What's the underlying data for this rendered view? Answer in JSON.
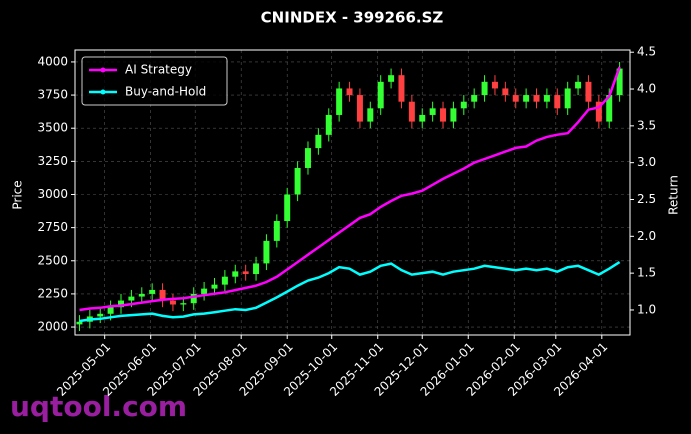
{
  "chart_data": {
    "type": "candlestick",
    "title": "CNINDEX - 399266.SZ",
    "ylabel": "Price",
    "y2label": "Return",
    "watermark": "uqtool.com",
    "x": [
      "2025-04-14",
      "2025-04-21",
      "2025-04-28",
      "2025-05-05",
      "2025-05-12",
      "2025-05-19",
      "2025-05-26",
      "2025-06-02",
      "2025-06-09",
      "2025-06-16",
      "2025-06-23",
      "2025-06-30",
      "2025-07-07",
      "2025-07-14",
      "2025-07-21",
      "2025-07-28",
      "2025-08-04",
      "2025-08-11",
      "2025-08-18",
      "2025-08-25",
      "2025-09-01",
      "2025-09-08",
      "2025-09-15",
      "2025-09-22",
      "2025-09-29",
      "2025-10-06",
      "2025-10-13",
      "2025-10-20",
      "2025-10-27",
      "2025-11-03",
      "2025-11-10",
      "2025-11-17",
      "2025-11-24",
      "2025-12-01",
      "2025-12-08",
      "2025-12-15",
      "2025-12-22",
      "2025-12-29",
      "2026-01-05",
      "2026-01-12",
      "2026-01-19",
      "2026-01-26",
      "2026-02-02",
      "2026-02-09",
      "2026-02-16",
      "2026-02-23",
      "2026-03-02",
      "2026-03-09",
      "2026-03-16",
      "2026-03-23",
      "2026-03-30",
      "2026-04-06",
      "2026-04-13"
    ],
    "open": [
      2020,
      2040,
      2080,
      2100,
      2150,
      2200,
      2230,
      2250,
      2280,
      2200,
      2170,
      2180,
      2250,
      2290,
      2320,
      2380,
      2420,
      2400,
      2480,
      2650,
      2800,
      3000,
      3200,
      3350,
      3450,
      3600,
      3800,
      3750,
      3550,
      3650,
      3850,
      3900,
      3700,
      3550,
      3600,
      3650,
      3550,
      3650,
      3700,
      3750,
      3850,
      3800,
      3750,
      3700,
      3750,
      3700,
      3750,
      3650,
      3800,
      3850,
      3700,
      3550,
      3750
    ],
    "high": [
      2090,
      2130,
      2150,
      2200,
      2250,
      2280,
      2300,
      2330,
      2330,
      2250,
      2230,
      2300,
      2340,
      2370,
      2430,
      2470,
      2470,
      2530,
      2700,
      2850,
      3050,
      3250,
      3400,
      3500,
      3650,
      3850,
      3850,
      3800,
      3700,
      3900,
      3950,
      3950,
      3750,
      3650,
      3700,
      3700,
      3700,
      3750,
      3800,
      3900,
      3900,
      3850,
      3800,
      3800,
      3800,
      3800,
      3800,
      3850,
      3900,
      3900,
      3750,
      3800,
      4000
    ],
    "low": [
      1970,
      1990,
      2030,
      2050,
      2100,
      2150,
      2180,
      2200,
      2150,
      2120,
      2120,
      2130,
      2200,
      2240,
      2270,
      2330,
      2350,
      2350,
      2430,
      2600,
      2750,
      2950,
      3150,
      3300,
      3400,
      3550,
      3700,
      3500,
      3500,
      3600,
      3800,
      3650,
      3500,
      3500,
      3550,
      3500,
      3500,
      3600,
      3650,
      3700,
      3750,
      3700,
      3650,
      3650,
      3650,
      3650,
      3600,
      3600,
      3750,
      3650,
      3500,
      3500,
      3700
    ],
    "close": [
      2040,
      2080,
      2100,
      2150,
      2200,
      2230,
      2250,
      2280,
      2200,
      2170,
      2180,
      2250,
      2290,
      2320,
      2380,
      2420,
      2400,
      2480,
      2650,
      2800,
      3000,
      3200,
      3350,
      3450,
      3600,
      3800,
      3750,
      3550,
      3650,
      3850,
      3900,
      3700,
      3550,
      3600,
      3650,
      3550,
      3650,
      3700,
      3750,
      3850,
      3800,
      3750,
      3700,
      3750,
      3700,
      3750,
      3650,
      3800,
      3850,
      3700,
      3550,
      3750,
      3950
    ],
    "up_color": "#33ff33",
    "down_color": "#ff4040",
    "series": [
      {
        "name": "AI Strategy",
        "color": "#ff00ff",
        "axis": "y2",
        "values": [
          1.0,
          1.02,
          1.03,
          1.05,
          1.06,
          1.08,
          1.1,
          1.12,
          1.14,
          1.15,
          1.16,
          1.18,
          1.2,
          1.22,
          1.24,
          1.27,
          1.3,
          1.33,
          1.38,
          1.45,
          1.55,
          1.65,
          1.75,
          1.85,
          1.95,
          2.05,
          2.15,
          2.25,
          2.3,
          2.4,
          2.48,
          2.55,
          2.58,
          2.62,
          2.7,
          2.78,
          2.85,
          2.92,
          3.0,
          3.05,
          3.1,
          3.15,
          3.2,
          3.22,
          3.3,
          3.35,
          3.38,
          3.4,
          3.55,
          3.72,
          3.75,
          3.9,
          4.3
        ]
      },
      {
        "name": "Buy-and-Hold",
        "color": "#00ffff",
        "axis": "y2",
        "values": [
          0.85,
          0.87,
          0.88,
          0.9,
          0.92,
          0.93,
          0.94,
          0.95,
          0.92,
          0.9,
          0.91,
          0.94,
          0.95,
          0.97,
          0.99,
          1.01,
          1.0,
          1.03,
          1.1,
          1.17,
          1.25,
          1.33,
          1.4,
          1.44,
          1.5,
          1.58,
          1.56,
          1.48,
          1.52,
          1.6,
          1.63,
          1.54,
          1.48,
          1.5,
          1.52,
          1.48,
          1.52,
          1.54,
          1.56,
          1.6,
          1.58,
          1.56,
          1.54,
          1.56,
          1.54,
          1.56,
          1.52,
          1.58,
          1.6,
          1.54,
          1.48,
          1.56,
          1.65
        ]
      }
    ],
    "xlim": [
      "2025-04-11",
      "2026-04-20"
    ],
    "xticks": [
      "2025-05-01",
      "2025-06-01",
      "2025-07-01",
      "2025-08-01",
      "2025-09-01",
      "2025-10-01",
      "2025-11-01",
      "2025-12-01",
      "2026-01-01",
      "2026-02-01",
      "2026-03-01",
      "2026-04-01"
    ],
    "ylim": [
      1940,
      4090
    ],
    "yticks": [
      2000,
      2250,
      2500,
      2750,
      3000,
      3250,
      3500,
      3750,
      4000
    ],
    "y2lim": [
      0.66,
      4.53
    ],
    "y2ticks": [
      {
        "value": 1,
        "label": "1.0"
      },
      {
        "value": 1.5,
        "label": "1.5"
      },
      {
        "value": 2,
        "label": "2.0"
      },
      {
        "value": 2.5,
        "label": "2.5"
      },
      {
        "value": 3,
        "label": "3.0"
      },
      {
        "value": 3.5,
        "label": "3.5"
      },
      {
        "value": 4,
        "label": "4.0"
      },
      {
        "value": 4.5,
        "label": "4.5"
      }
    ],
    "grid": true,
    "legend": "upper left"
  }
}
